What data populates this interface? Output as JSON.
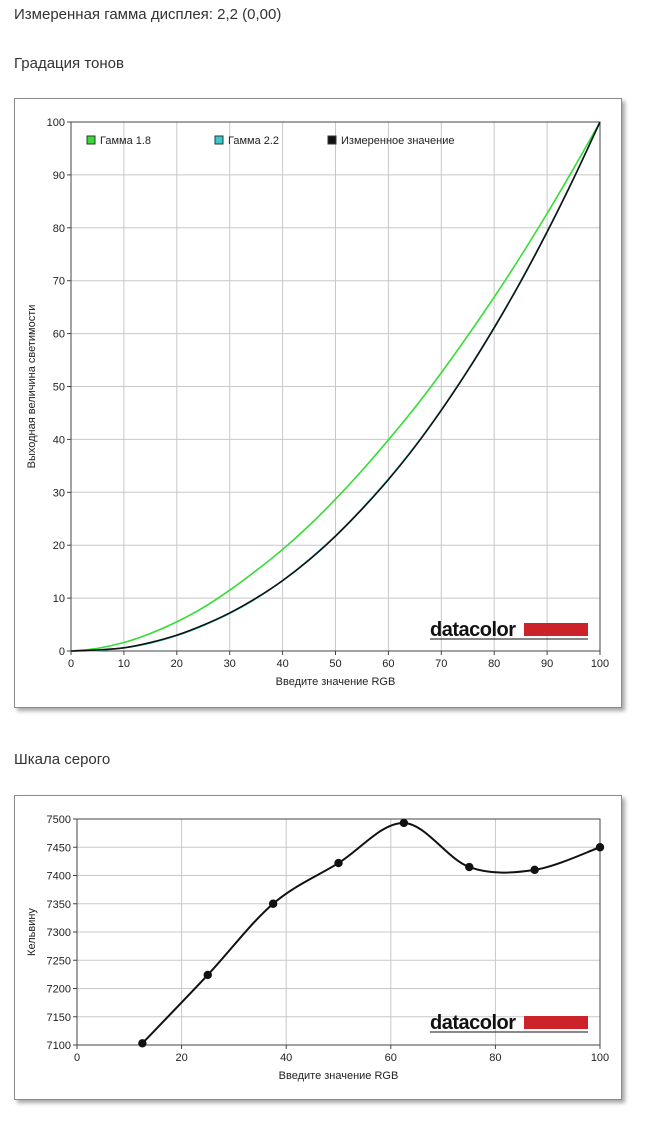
{
  "header": {
    "measured_gamma": "Измеренная гамма дисплея: 2,2 (0,00)",
    "tone_title": "Градация тонов",
    "gray_title": "Шкала серого"
  },
  "brand": {
    "logo_text": "datacolor",
    "bar_color": "#cc2229"
  },
  "chart_data": [
    {
      "type": "line",
      "title": "Градация тонов",
      "xlabel": "Введите значение RGB",
      "ylabel": "Выходная величина светимости",
      "xlim": [
        0,
        100
      ],
      "ylim": [
        0,
        100
      ],
      "x_ticks": [
        0,
        10,
        20,
        30,
        40,
        50,
        60,
        70,
        80,
        90,
        100
      ],
      "y_ticks": [
        0,
        10,
        20,
        30,
        40,
        50,
        60,
        70,
        80,
        90,
        100
      ],
      "grid": true,
      "legend": "top-left",
      "x": [
        0,
        5,
        10,
        15,
        20,
        25,
        30,
        35,
        40,
        45,
        50,
        55,
        60,
        65,
        70,
        75,
        80,
        85,
        90,
        95,
        100
      ],
      "series": [
        {
          "name": "Гамма 1.8",
          "color": "#33dd33",
          "marker": "none",
          "values": [
            0,
            0.5,
            1.6,
            3.3,
            5.5,
            8.2,
            11.5,
            15.2,
            19.2,
            23.7,
            28.7,
            34.1,
            39.9,
            46.0,
            52.6,
            59.6,
            66.9,
            74.6,
            82.7,
            91.2,
            100
          ]
        },
        {
          "name": "Гамма 2.2",
          "color": "#33cccc",
          "marker": "none",
          "values": [
            0,
            0.1,
            0.6,
            1.5,
            2.9,
            4.8,
            7.1,
            9.9,
            13.3,
            17.3,
            21.8,
            26.9,
            32.5,
            38.7,
            45.6,
            53.1,
            61.2,
            69.9,
            79.3,
            89.3,
            100
          ]
        },
        {
          "name": "Измеренное значение",
          "color": "#111111",
          "marker": "none",
          "values": [
            0,
            0.2,
            0.6,
            1.6,
            3.0,
            4.9,
            7.2,
            10.0,
            13.3,
            17.2,
            21.7,
            26.8,
            32.4,
            38.6,
            45.5,
            53.0,
            61.1,
            69.8,
            79.2,
            89.3,
            100
          ]
        }
      ]
    },
    {
      "type": "line",
      "title": "Шкала серого",
      "xlabel": "Введите значение RGB",
      "ylabel": "Кельвину",
      "xlim": [
        0,
        100
      ],
      "ylim": [
        7100,
        7500
      ],
      "x_ticks": [
        0,
        20,
        40,
        60,
        80,
        100
      ],
      "y_ticks": [
        7100,
        7150,
        7200,
        7250,
        7300,
        7350,
        7400,
        7450,
        7500
      ],
      "grid": true,
      "series": [
        {
          "name": "",
          "color": "#111111",
          "marker": "circle",
          "points": [
            [
              12.5,
              7103
            ],
            [
              25,
              7224
            ],
            [
              37.5,
              7350
            ],
            [
              50,
              7422
            ],
            [
              62.5,
              7493
            ],
            [
              75,
              7415
            ],
            [
              87.5,
              7410
            ],
            [
              100,
              7450
            ]
          ]
        }
      ]
    }
  ]
}
